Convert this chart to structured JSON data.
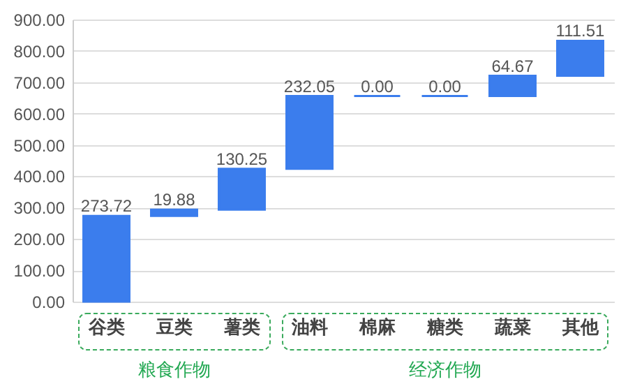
{
  "chart_data": {
    "type": "bar",
    "categories": [
      "谷类",
      "豆类",
      "薯类",
      "油料",
      "棉麻",
      "糖类",
      "蔬菜",
      "其他"
    ],
    "values": [
      273.72,
      19.88,
      130.25,
      232.05,
      0,
      0,
      64.67,
      111.51
    ],
    "base": [
      0,
      273.72,
      293.6,
      423.85,
      655.9,
      655.9,
      655.9,
      720.57
    ],
    "value_labels": [
      "273.72",
      "19.88",
      "130.25",
      "232.05",
      "0.00",
      "0.00",
      "64.67",
      "111.51"
    ],
    "color": "#3b7ded",
    "ylim": [
      0,
      900
    ],
    "yticks": [
      {
        "value": 0,
        "label": "0.00"
      },
      {
        "value": 100,
        "label": "100.00"
      },
      {
        "value": 200,
        "label": "200.00"
      },
      {
        "value": 300,
        "label": "300.00"
      },
      {
        "value": 400,
        "label": "400.00"
      },
      {
        "value": 500,
        "label": "500.00"
      },
      {
        "value": 600,
        "label": "600.00"
      },
      {
        "value": 700,
        "label": "700.00"
      },
      {
        "value": 800,
        "label": "800.00"
      },
      {
        "value": 900,
        "label": "900.00"
      }
    ],
    "grid": "y",
    "annotations": [
      "粮食作物",
      "经济作物"
    ]
  }
}
